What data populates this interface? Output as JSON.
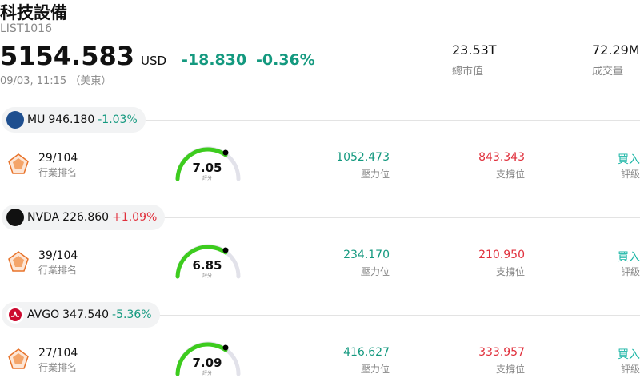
{
  "header": {
    "title": "科技設備",
    "code": "LIST1016",
    "price": "5154.583",
    "currency": "USD",
    "change": "-18.830",
    "change_pct": "-0.36%",
    "time": "09/03, 11:15 （美東）",
    "market_cap": {
      "value": "23.53T",
      "label": "總市值"
    },
    "volume": {
      "value": "72.29M",
      "label": "成交量"
    }
  },
  "stocks": [
    {
      "ticker": "MU",
      "price": "946.180",
      "change_pct": "-1.03%",
      "rank": "29/104",
      "rank_label": "行業排名",
      "score": "7.05",
      "score_label": "評分",
      "resistance": "1052.473",
      "resistance_label": "壓力位",
      "support": "843.343",
      "support_label": "支撐位",
      "rating": "買入",
      "rating_label": "評級"
    },
    {
      "ticker": "NVDA",
      "price": "226.860",
      "change_pct": "+1.09%",
      "rank": "39/104",
      "rank_label": "行業排名",
      "score": "6.85",
      "score_label": "評分",
      "resistance": "234.170",
      "resistance_label": "壓力位",
      "support": "210.950",
      "support_label": "支撐位",
      "rating": "買入",
      "rating_label": "評級"
    },
    {
      "ticker": "AVGO",
      "price": "347.540",
      "change_pct": "-5.36%",
      "rank": "27/104",
      "rank_label": "行業排名",
      "score": "7.09",
      "score_label": "評分",
      "resistance": "416.627",
      "resistance_label": "壓力位",
      "support": "333.957",
      "support_label": "支撐位",
      "rating": "買入",
      "rating_label": "評級"
    }
  ]
}
